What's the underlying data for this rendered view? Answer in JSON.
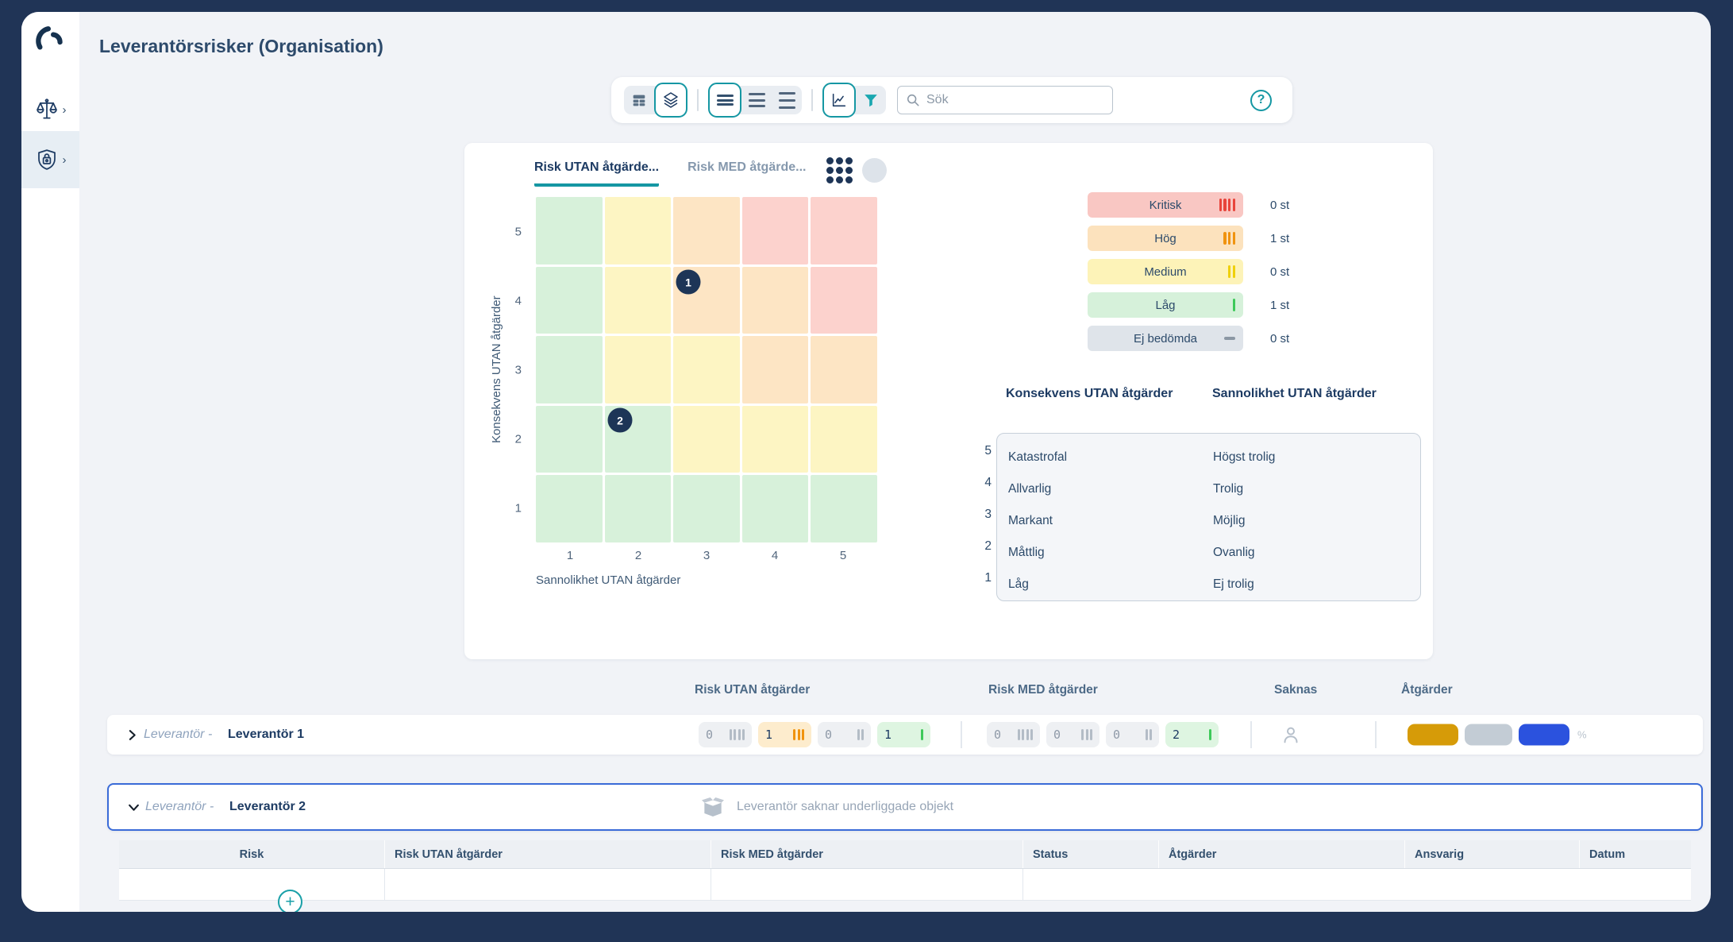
{
  "window": {
    "title": "Leverantörsrisker (Organisation)"
  },
  "colors": {
    "accent_teal": "#1597a3",
    "navy_text": "#1d3b63",
    "frame": "#203456",
    "row_selected_border": "#3a6bd8",
    "marker_bg": "#1d3557",
    "severity_bar": {
      "critical": "#e8443b",
      "high": "#f0930f",
      "medium": "#efd00a",
      "low": "#3ec95a",
      "none": "#8b97a4"
    },
    "matrix_cell": {
      "low": "#d7f1da",
      "medium": "#fdf5c3",
      "high": "#fde5c4",
      "critical": "#fcd2cd"
    },
    "legend_chip_bg": {
      "critical": "#f9c7c3",
      "high": "#fce2bd",
      "medium": "#fdf3b8",
      "low": "#d6f1da",
      "none": "#dfe4ea"
    },
    "list_badge_bg_zero": "#eef0f3",
    "list_badge_bg": {
      "critical": "#fbd9d6",
      "high": "#fdeccd",
      "medium": "#fdf3b8",
      "low": "#def5e1"
    },
    "zero_text": "#8f9aa8",
    "pills": {
      "gold": "#d69b08",
      "gray": "#c3ccd5",
      "blue": "#2b52de"
    }
  },
  "toolbar": {
    "search_placeholder": "Sök"
  },
  "matrix": {
    "tabs": [
      {
        "label": "Risk UTAN åtgärde...",
        "active": true
      },
      {
        "label": "Risk MED åtgärde...",
        "active": false
      }
    ],
    "y_label": "Konsekvens UTAN åtgärder",
    "x_label": "Sannolikhet UTAN åtgärder",
    "y_ticks": [
      "5",
      "4",
      "3",
      "2",
      "1"
    ],
    "x_ticks": [
      "1",
      "2",
      "3",
      "4",
      "5"
    ],
    "cells_top_to_bottom": [
      [
        "low",
        "medium",
        "high",
        "critical",
        "critical"
      ],
      [
        "low",
        "medium",
        "high",
        "high",
        "critical"
      ],
      [
        "low",
        "medium",
        "medium",
        "high",
        "high"
      ],
      [
        "low",
        "low",
        "medium",
        "medium",
        "medium"
      ],
      [
        "low",
        "low",
        "low",
        "low",
        "low"
      ]
    ],
    "markers": [
      {
        "label": "1",
        "col": 3,
        "row": 4
      },
      {
        "label": "2",
        "col": 2,
        "row": 2
      }
    ]
  },
  "legend": {
    "items": [
      {
        "label": "Kritisk",
        "severity": "critical",
        "count": "0 st"
      },
      {
        "label": "Hög",
        "severity": "high",
        "count": "1 st"
      },
      {
        "label": "Medium",
        "severity": "medium",
        "count": "0 st"
      },
      {
        "label": "Låg",
        "severity": "low",
        "count": "1 st"
      },
      {
        "label": "Ej bedömda",
        "severity": "none",
        "count": "0 st"
      }
    ]
  },
  "scales": {
    "consequence_header": "Konsekvens UTAN åtgärder",
    "likelihood_header": "Sannolikhet UTAN åtgärder",
    "rows": [
      {
        "num": "5",
        "consequence": "Katastrofal",
        "likelihood": "Högst trolig"
      },
      {
        "num": "4",
        "consequence": "Allvarlig",
        "likelihood": "Trolig"
      },
      {
        "num": "3",
        "consequence": "Markant",
        "likelihood": "Möjlig"
      },
      {
        "num": "2",
        "consequence": "Måttlig",
        "likelihood": "Ovanlig"
      },
      {
        "num": "1",
        "consequence": "Låg",
        "likelihood": "Ej trolig"
      }
    ]
  },
  "list": {
    "column_headers": [
      "Risk UTAN åtgärder",
      "Risk MED åtgärder",
      "Saknas",
      "Åtgärder"
    ],
    "rows": [
      {
        "type_label": "Leverantör -",
        "name": "Leverantör 1",
        "risk_utan": [
          {
            "value": "0",
            "severity": "critical"
          },
          {
            "value": "1",
            "severity": "high"
          },
          {
            "value": "0",
            "severity": "medium"
          },
          {
            "value": "1",
            "severity": "low"
          }
        ],
        "risk_med": [
          {
            "value": "0",
            "severity": "critical"
          },
          {
            "value": "0",
            "severity": "high"
          },
          {
            "value": "0",
            "severity": "medium"
          },
          {
            "value": "2",
            "severity": "low"
          }
        ],
        "actions_suffix": "%"
      },
      {
        "type_label": "Leverantör -",
        "name": "Leverantör 2",
        "empty_message": "Leverantör saknar underliggade objekt"
      }
    ],
    "detail_headers": [
      "Risk",
      "Risk UTAN åtgärder",
      "Risk MED åtgärder",
      "Status",
      "Åtgärder",
      "Ansvarig",
      "Datum"
    ]
  },
  "chart_data": {
    "type": "heatmap",
    "title": "Risk UTAN åtgärder (5x5 riskmatris)",
    "xlabel": "Sannolikhet UTAN åtgärder",
    "ylabel": "Konsekvens UTAN åtgärder",
    "x": [
      1,
      2,
      3,
      4,
      5
    ],
    "y": [
      1,
      2,
      3,
      4,
      5
    ],
    "cell_severity_rows_y5_to_y1": [
      [
        "low",
        "medium",
        "high",
        "critical",
        "critical"
      ],
      [
        "low",
        "medium",
        "high",
        "high",
        "critical"
      ],
      [
        "low",
        "medium",
        "medium",
        "high",
        "high"
      ],
      [
        "low",
        "low",
        "medium",
        "medium",
        "medium"
      ],
      [
        "low",
        "low",
        "low",
        "low",
        "low"
      ]
    ],
    "points": [
      {
        "id": "1",
        "x": 3,
        "y": 4
      },
      {
        "id": "2",
        "x": 2,
        "y": 2
      }
    ],
    "severity_counts": {
      "Kritisk": 0,
      "Hög": 1,
      "Medium": 0,
      "Låg": 1,
      "Ej bedömda": 0
    },
    "legend_position": "right",
    "grid": true
  }
}
